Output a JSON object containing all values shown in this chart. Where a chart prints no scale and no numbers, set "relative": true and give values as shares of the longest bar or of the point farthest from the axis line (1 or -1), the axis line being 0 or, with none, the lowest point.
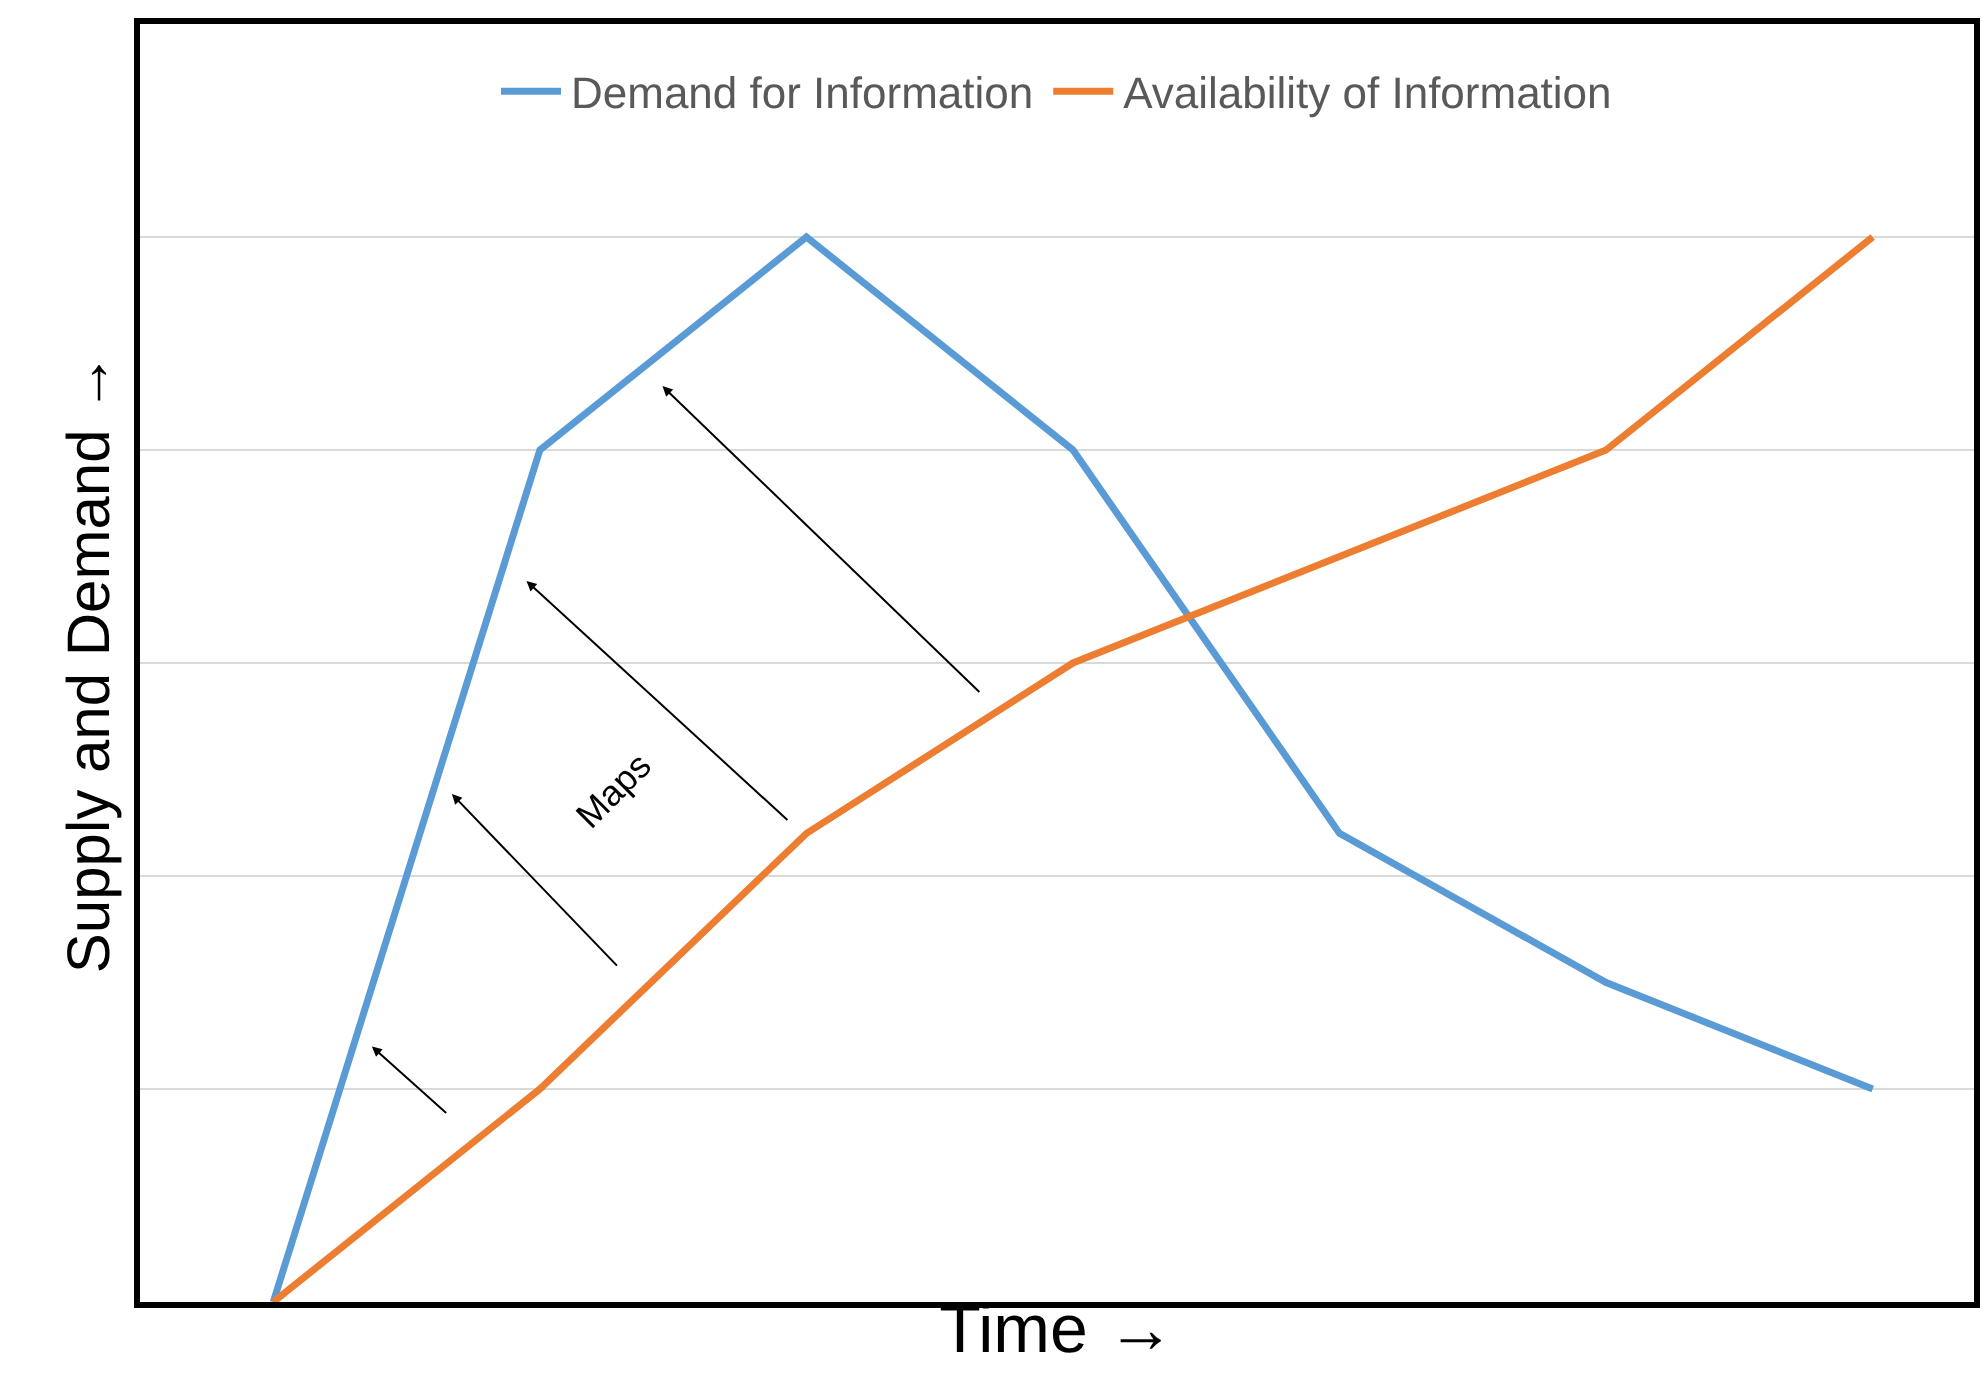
{
  "chart_data": {
    "type": "line",
    "relative": true,
    "xlabel": "Time →",
    "ylabel": "Supply and Demand →",
    "categories": [
      null,
      null,
      null,
      null,
      null,
      null,
      null
    ],
    "series": [
      {
        "name": "Demand for Information",
        "color": "#5b9bd5",
        "values": [
          0,
          0.8,
          1,
          0.8,
          0.44,
          0.3,
          0.2
        ]
      },
      {
        "name": "Availability of Information",
        "color": "#ed7d31",
        "values": [
          0,
          0.2,
          0.44,
          0.6,
          0.7,
          0.8,
          1
        ]
      }
    ],
    "annotations": [
      "Maps"
    ],
    "grid": "y",
    "legend": "top",
    "tick_labels": false,
    "marker": "none",
    "line_style": "solid"
  }
}
